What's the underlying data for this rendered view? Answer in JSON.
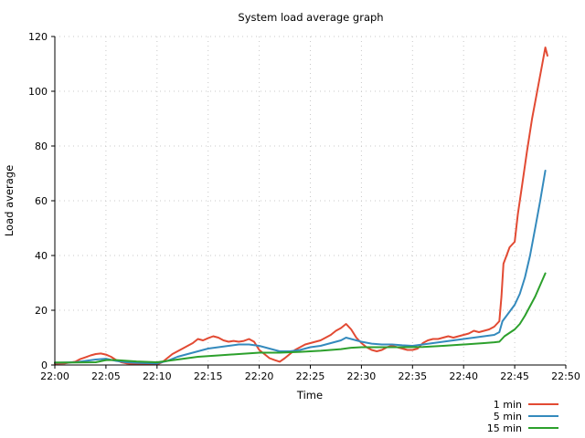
{
  "chart_data": {
    "type": "line",
    "title": "System load average graph",
    "xlabel": "Time",
    "ylabel": "Load average",
    "x_unit": "minutes after 22:00",
    "xlim": [
      0,
      50
    ],
    "ylim": [
      0,
      120
    ],
    "x_ticks": [
      0,
      5,
      10,
      15,
      20,
      25,
      30,
      35,
      40,
      45,
      50
    ],
    "x_tick_labels": [
      "22:00",
      "22:05",
      "22:10",
      "22:15",
      "22:20",
      "22:25",
      "22:30",
      "22:35",
      "22:40",
      "22:45",
      "22:50"
    ],
    "y_ticks": [
      0,
      20,
      40,
      60,
      80,
      100,
      120
    ],
    "y_tick_labels": [
      "0",
      "20",
      "40",
      "60",
      "80",
      "100",
      "120"
    ],
    "grid": true,
    "legend_position": "bottom-right",
    "series": [
      {
        "name": "1 min",
        "color": "#e24a33",
        "points": [
          [
            0,
            0.5
          ],
          [
            1,
            0.6
          ],
          [
            2,
            1.2
          ],
          [
            2.5,
            2.2
          ],
          [
            3,
            2.8
          ],
          [
            3.5,
            3.5
          ],
          [
            4,
            4.0
          ],
          [
            4.5,
            4.2
          ],
          [
            5,
            3.8
          ],
          [
            5.5,
            3.0
          ],
          [
            6,
            1.8
          ],
          [
            6.5,
            1.0
          ],
          [
            7,
            0.6
          ],
          [
            8,
            0.3
          ],
          [
            9,
            0.2
          ],
          [
            10,
            0.2
          ],
          [
            10.5,
            1.0
          ],
          [
            11,
            2.5
          ],
          [
            11.5,
            4.0
          ],
          [
            12,
            5.0
          ],
          [
            12.5,
            6.0
          ],
          [
            13,
            7.0
          ],
          [
            13.5,
            8.0
          ],
          [
            14,
            9.5
          ],
          [
            14.5,
            9.0
          ],
          [
            15,
            9.8
          ],
          [
            15.5,
            10.5
          ],
          [
            16,
            10.0
          ],
          [
            16.5,
            9.0
          ],
          [
            17,
            8.5
          ],
          [
            17.5,
            8.8
          ],
          [
            18,
            8.5
          ],
          [
            18.5,
            8.8
          ],
          [
            19,
            9.5
          ],
          [
            19.5,
            8.5
          ],
          [
            20,
            5.5
          ],
          [
            20.5,
            4.0
          ],
          [
            21,
            2.5
          ],
          [
            21.5,
            1.8
          ],
          [
            22,
            1.2
          ],
          [
            22.5,
            2.5
          ],
          [
            23,
            4.0
          ],
          [
            23.5,
            5.5
          ],
          [
            24,
            6.5
          ],
          [
            24.5,
            7.5
          ],
          [
            25,
            8.0
          ],
          [
            25.5,
            8.5
          ],
          [
            26,
            9.0
          ],
          [
            26.5,
            10.0
          ],
          [
            27,
            11.0
          ],
          [
            27.5,
            12.5
          ],
          [
            28,
            13.5
          ],
          [
            28.5,
            15.0
          ],
          [
            29,
            13.0
          ],
          [
            29.5,
            10.0
          ],
          [
            30,
            8.0
          ],
          [
            30.5,
            6.5
          ],
          [
            31,
            5.5
          ],
          [
            31.5,
            5.0
          ],
          [
            32,
            5.5
          ],
          [
            32.5,
            6.5
          ],
          [
            33,
            7.0
          ],
          [
            33.5,
            6.5
          ],
          [
            34,
            6.0
          ],
          [
            34.5,
            5.5
          ],
          [
            35,
            5.5
          ],
          [
            35.5,
            6.0
          ],
          [
            36,
            8.0
          ],
          [
            36.5,
            9.0
          ],
          [
            37,
            9.5
          ],
          [
            37.5,
            9.5
          ],
          [
            38,
            10.0
          ],
          [
            38.5,
            10.5
          ],
          [
            39,
            10.0
          ],
          [
            39.5,
            10.5
          ],
          [
            40,
            11.0
          ],
          [
            40.5,
            11.5
          ],
          [
            41,
            12.5
          ],
          [
            41.5,
            12.0
          ],
          [
            42,
            12.5
          ],
          [
            42.5,
            13.0
          ],
          [
            43,
            14.0
          ],
          [
            43.5,
            16.0
          ],
          [
            43.7,
            25.0
          ],
          [
            43.9,
            37.0
          ],
          [
            44.2,
            40.0
          ],
          [
            44.5,
            43.0
          ],
          [
            45,
            45.0
          ],
          [
            45.3,
            55.0
          ],
          [
            45.7,
            65.0
          ],
          [
            46.2,
            78.0
          ],
          [
            46.7,
            90.0
          ],
          [
            47.2,
            100.0
          ],
          [
            47.7,
            110.0
          ],
          [
            48,
            116.0
          ],
          [
            48.2,
            113.0
          ]
        ]
      },
      {
        "name": "5 min",
        "color": "#348abd",
        "points": [
          [
            0,
            0.8
          ],
          [
            2,
            1.0
          ],
          [
            3,
            1.5
          ],
          [
            4,
            2.0
          ],
          [
            5,
            2.3
          ],
          [
            6,
            1.5
          ],
          [
            7,
            1.0
          ],
          [
            8,
            0.8
          ],
          [
            10,
            0.6
          ],
          [
            11,
            1.5
          ],
          [
            12,
            3.0
          ],
          [
            13,
            4.0
          ],
          [
            14,
            5.0
          ],
          [
            15,
            6.0
          ],
          [
            16,
            6.5
          ],
          [
            17,
            7.0
          ],
          [
            18,
            7.5
          ],
          [
            19,
            7.5
          ],
          [
            20,
            7.0
          ],
          [
            21,
            6.0
          ],
          [
            22,
            5.0
          ],
          [
            23,
            5.0
          ],
          [
            24,
            5.5
          ],
          [
            25,
            6.5
          ],
          [
            26,
            7.0
          ],
          [
            27,
            8.0
          ],
          [
            28,
            9.0
          ],
          [
            28.5,
            10.0
          ],
          [
            29,
            9.5
          ],
          [
            30,
            8.5
          ],
          [
            31,
            7.8
          ],
          [
            32,
            7.5
          ],
          [
            33,
            7.5
          ],
          [
            34,
            7.2
          ],
          [
            35,
            7.0
          ],
          [
            36,
            7.5
          ],
          [
            37,
            8.0
          ],
          [
            38,
            8.5
          ],
          [
            39,
            9.0
          ],
          [
            40,
            9.5
          ],
          [
            41,
            10.0
          ],
          [
            42,
            10.5
          ],
          [
            43,
            11.0
          ],
          [
            43.5,
            12.0
          ],
          [
            43.8,
            16.0
          ],
          [
            44.2,
            18.0
          ],
          [
            45,
            22.0
          ],
          [
            45.5,
            26.0
          ],
          [
            46,
            32.0
          ],
          [
            46.5,
            40.0
          ],
          [
            47,
            50.0
          ],
          [
            47.5,
            60.0
          ],
          [
            48,
            71.0
          ]
        ]
      },
      {
        "name": "15 min",
        "color": "#2ca02c",
        "points": [
          [
            0,
            0.9
          ],
          [
            2,
            0.9
          ],
          [
            4,
            1.0
          ],
          [
            5,
            1.8
          ],
          [
            6,
            1.8
          ],
          [
            8,
            1.3
          ],
          [
            10,
            1.0
          ],
          [
            12,
            2.0
          ],
          [
            14,
            3.0
          ],
          [
            16,
            3.5
          ],
          [
            18,
            4.0
          ],
          [
            20,
            4.5
          ],
          [
            22,
            4.5
          ],
          [
            24,
            4.8
          ],
          [
            26,
            5.2
          ],
          [
            28,
            5.8
          ],
          [
            29,
            6.3
          ],
          [
            30,
            6.5
          ],
          [
            32,
            6.5
          ],
          [
            34,
            6.5
          ],
          [
            36,
            6.6
          ],
          [
            38,
            7.0
          ],
          [
            40,
            7.5
          ],
          [
            42,
            8.0
          ],
          [
            43,
            8.3
          ],
          [
            43.5,
            8.5
          ],
          [
            44,
            10.5
          ],
          [
            45,
            13.0
          ],
          [
            45.5,
            15.0
          ],
          [
            46,
            18.0
          ],
          [
            47,
            25.0
          ],
          [
            48,
            33.5
          ]
        ]
      }
    ]
  }
}
